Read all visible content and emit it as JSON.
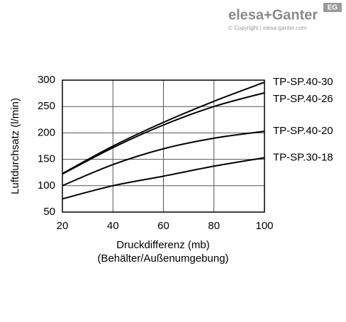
{
  "logo": {
    "brand": "elesa+Ganter",
    "badge": "EG",
    "copyright": "© Copyright | elesa-ganter.com"
  },
  "chart_data": {
    "type": "line",
    "xlabel": "Druckdifferenz (mb)",
    "xlabel_note": "(Behälter/Außenumgebung)",
    "ylabel": "Luftdurchsatz (l/min)",
    "x": [
      20,
      40,
      60,
      80,
      100
    ],
    "series": [
      {
        "name": "TP-SP.40-30",
        "color": "#000000",
        "values": [
          123,
          175,
          220,
          260,
          296
        ]
      },
      {
        "name": "TP-SP.40-26",
        "color": "#000000",
        "values": [
          122,
          172,
          215,
          250,
          276
        ]
      },
      {
        "name": "TP-SP.40-20",
        "color": "#000000",
        "values": [
          100,
          140,
          170,
          190,
          203
        ]
      },
      {
        "name": "TP-SP.30-18",
        "color": "#000000",
        "values": [
          75,
          100,
          118,
          137,
          153
        ]
      }
    ],
    "xlim": [
      20,
      100
    ],
    "xticks": [
      20,
      40,
      60,
      80,
      100
    ],
    "ylim": [
      50,
      300
    ],
    "yticks": [
      50,
      100,
      150,
      200,
      250,
      300
    ],
    "grid": true
  }
}
